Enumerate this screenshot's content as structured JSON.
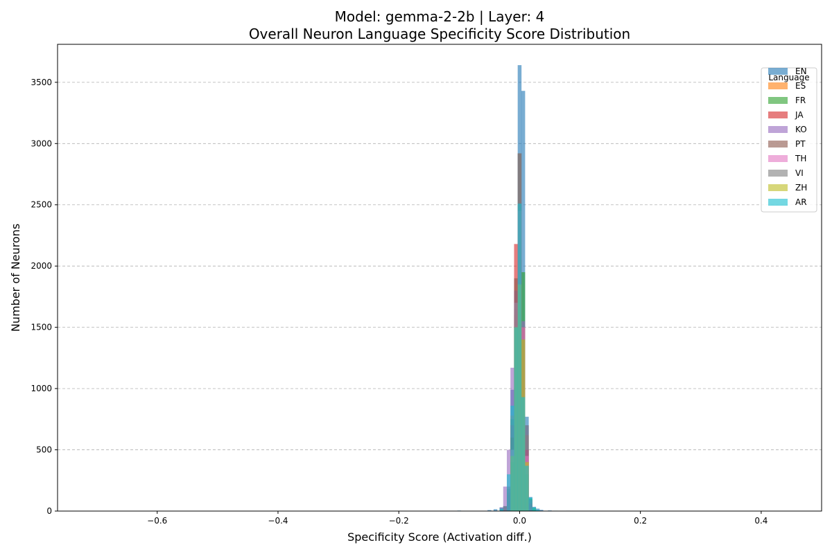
{
  "chart_data": {
    "type": "bar",
    "title_line1": "Model: gemma-2-2b | Layer: 4",
    "title_line2": "Overall Neuron Language Specificity Score Distribution",
    "xlabel": "Specificity Score (Activation diff.)",
    "ylabel": "Number of Neurons",
    "xlim": [
      -0.765,
      0.5
    ],
    "ylim": [
      0,
      3810
    ],
    "xticks": [
      -0.6,
      -0.4,
      -0.2,
      0.0,
      0.2,
      0.4
    ],
    "xtick_labels": [
      "−0.6",
      "−0.4",
      "−0.2",
      "0.0",
      "0.2",
      "0.4"
    ],
    "yticks": [
      0,
      500,
      1000,
      1500,
      2000,
      2500,
      3000,
      3500
    ],
    "ytick_labels": [
      "0",
      "500",
      "1000",
      "1500",
      "2000",
      "2500",
      "3000",
      "3500"
    ],
    "grid": "y-dashed",
    "bin_width": 0.0063,
    "legend": {
      "title": "Language",
      "placement": "top-right"
    },
    "series": [
      {
        "name": "EN",
        "color": "#1f77b4",
        "bins": [
          [
            -0.1,
            4
          ],
          [
            -0.05,
            8
          ],
          [
            -0.04,
            15
          ],
          [
            -0.03,
            30
          ],
          [
            -0.024,
            40
          ],
          [
            -0.018,
            130
          ],
          [
            -0.012,
            990
          ],
          [
            -0.006,
            990
          ],
          [
            0.0,
            3640
          ],
          [
            0.006,
            3430
          ],
          [
            0.012,
            770
          ],
          [
            0.018,
            115
          ],
          [
            0.024,
            35
          ],
          [
            0.03,
            20
          ],
          [
            0.036,
            10
          ],
          [
            0.05,
            5
          ],
          [
            0.08,
            3
          ]
        ]
      },
      {
        "name": "ES",
        "color": "#ff7f0e",
        "bins": [
          [
            -0.018,
            150
          ],
          [
            -0.012,
            780
          ],
          [
            -0.006,
            1600
          ],
          [
            0.0,
            1850
          ],
          [
            0.006,
            1500
          ],
          [
            0.012,
            620
          ],
          [
            0.018,
            90
          ]
        ]
      },
      {
        "name": "FR",
        "color": "#2ca02c",
        "bins": [
          [
            -0.03,
            20
          ],
          [
            -0.024,
            40
          ],
          [
            -0.018,
            180
          ],
          [
            -0.012,
            750
          ],
          [
            -0.006,
            1650
          ],
          [
            0.0,
            1860
          ],
          [
            0.006,
            1950
          ],
          [
            0.012,
            700
          ],
          [
            0.018,
            100
          ],
          [
            0.024,
            25
          ]
        ]
      },
      {
        "name": "JA",
        "color": "#d62728",
        "bins": [
          [
            -0.018,
            200
          ],
          [
            -0.012,
            700
          ],
          [
            -0.006,
            2180
          ],
          [
            0.0,
            2050
          ],
          [
            0.006,
            1400
          ],
          [
            0.012,
            500
          ],
          [
            0.018,
            60
          ]
        ]
      },
      {
        "name": "KO",
        "color": "#9467bd",
        "bins": [
          [
            -0.03,
            30
          ],
          [
            -0.024,
            200
          ],
          [
            -0.018,
            500
          ],
          [
            -0.012,
            1170
          ],
          [
            -0.006,
            1800
          ],
          [
            0.0,
            1900
          ],
          [
            0.006,
            1550
          ],
          [
            0.012,
            700
          ],
          [
            0.018,
            90
          ]
        ]
      },
      {
        "name": "PT",
        "color": "#8c564b",
        "bins": [
          [
            -0.012,
            600
          ],
          [
            -0.006,
            1900
          ],
          [
            0.0,
            2920
          ],
          [
            0.006,
            1500
          ],
          [
            0.012,
            400
          ]
        ]
      },
      {
        "name": "TH",
        "color": "#e377c2",
        "bins": [
          [
            -0.012,
            500
          ],
          [
            -0.006,
            1700
          ],
          [
            0.0,
            2450
          ],
          [
            0.006,
            1500
          ],
          [
            0.012,
            450
          ]
        ]
      },
      {
        "name": "VI",
        "color": "#7f7f7f",
        "bins": [
          [
            -0.012,
            400
          ],
          [
            -0.006,
            1700
          ],
          [
            0.0,
            2920
          ],
          [
            0.006,
            1400
          ],
          [
            0.012,
            300
          ]
        ]
      },
      {
        "name": "ZH",
        "color": "#bcbd22",
        "bins": [
          [
            -0.012,
            450
          ],
          [
            -0.006,
            1500
          ],
          [
            0.0,
            1850
          ],
          [
            0.006,
            1400
          ],
          [
            0.012,
            400
          ]
        ]
      },
      {
        "name": "AR",
        "color": "#17becf",
        "bins": [
          [
            -0.1,
            3
          ],
          [
            -0.03,
            20
          ],
          [
            -0.018,
            300
          ],
          [
            -0.012,
            860
          ],
          [
            -0.006,
            1500
          ],
          [
            0.0,
            2510
          ],
          [
            0.006,
            930
          ],
          [
            0.012,
            370
          ],
          [
            0.018,
            110
          ],
          [
            0.024,
            30
          ],
          [
            0.03,
            10
          ],
          [
            0.06,
            3
          ],
          [
            0.12,
            2
          ]
        ]
      }
    ]
  }
}
